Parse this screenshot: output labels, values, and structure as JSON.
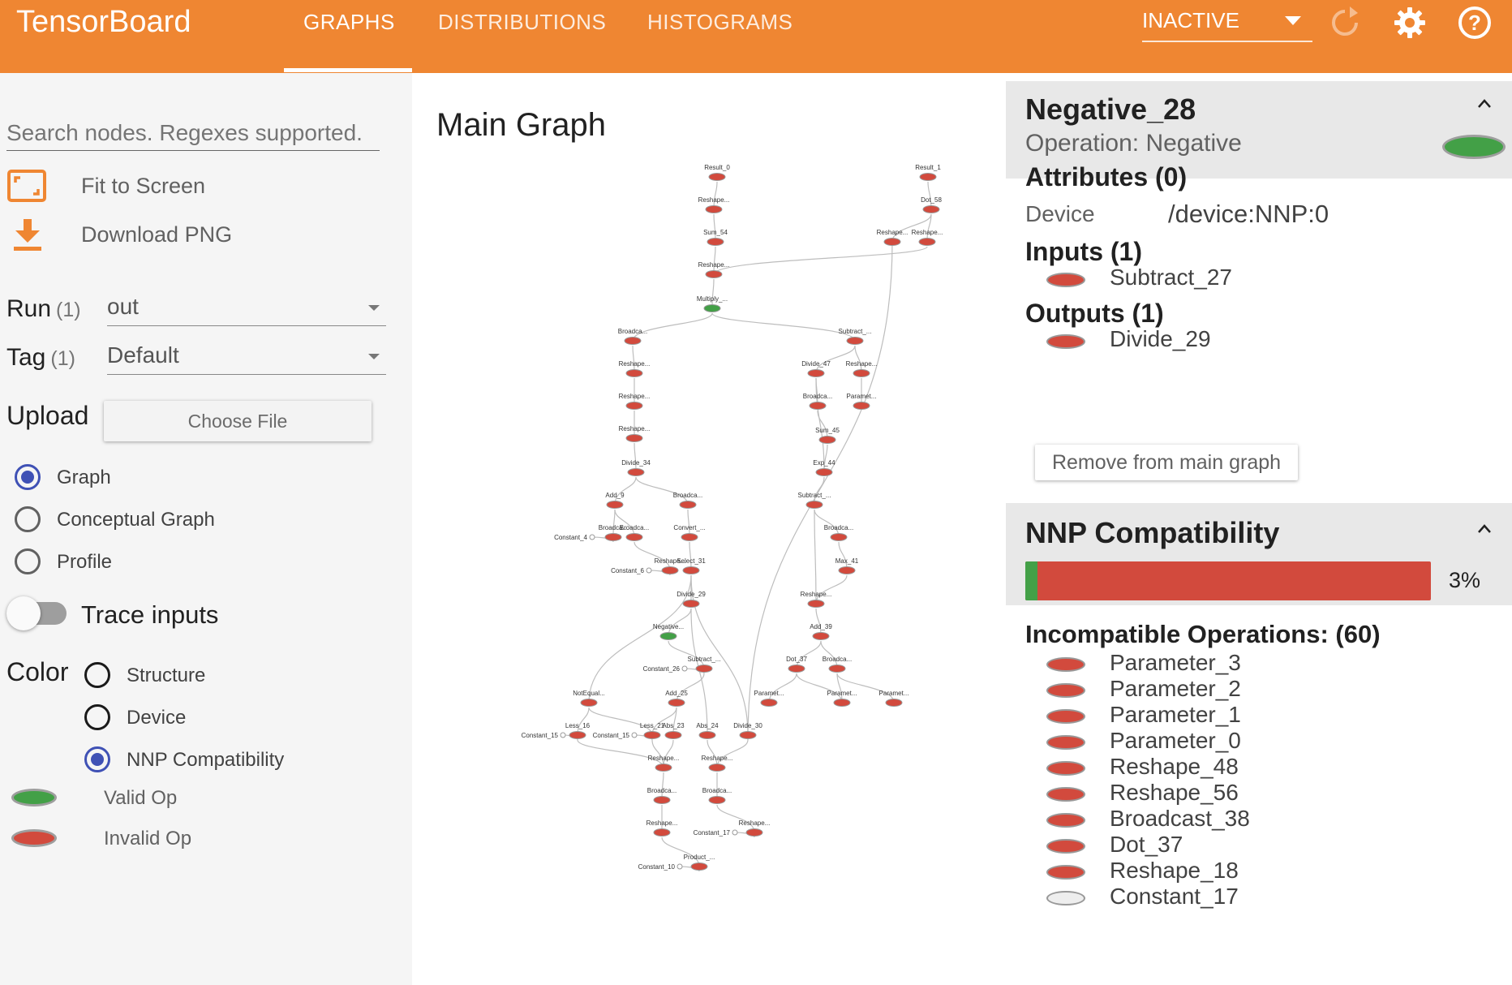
{
  "app": {
    "brand": "TensorBoard"
  },
  "tabs": [
    {
      "label": "GRAPHS",
      "active": true
    },
    {
      "label": "DISTRIBUTIONS",
      "active": false
    },
    {
      "label": "HISTOGRAMS",
      "active": false
    }
  ],
  "topbar": {
    "run_select": "INACTIVE",
    "icons": [
      "refresh-icon",
      "settings-icon",
      "help-icon"
    ]
  },
  "sidebar": {
    "search_placeholder": "Search nodes. Regexes supported.",
    "fit_label": "Fit to Screen",
    "download_label": "Download PNG",
    "run": {
      "label": "Run",
      "count": "(1)",
      "value": "out"
    },
    "tag": {
      "label": "Tag",
      "count": "(1)",
      "value": "Default"
    },
    "upload": {
      "label": "Upload",
      "button": "Choose File"
    },
    "graph_modes": [
      {
        "label": "Graph",
        "selected": true
      },
      {
        "label": "Conceptual Graph",
        "selected": false
      },
      {
        "label": "Profile",
        "selected": false
      }
    ],
    "trace_label": "Trace inputs",
    "trace_on": false,
    "color_label": "Color",
    "color_modes": [
      {
        "label": "Structure",
        "selected": false
      },
      {
        "label": "Device",
        "selected": false
      },
      {
        "label": "NNP Compatibility",
        "selected": true
      }
    ],
    "legend": [
      {
        "label": "Valid Op",
        "color": "#43a047"
      },
      {
        "label": "Invalid Op",
        "color": "#d24a3d"
      }
    ]
  },
  "graph": {
    "title": "Main Graph",
    "colors": {
      "invalid": "#d24a3d",
      "valid": "#43a047",
      "constant": "#ffffff",
      "edge": "#bdbdbd"
    },
    "nodes": [
      {
        "id": "n0",
        "label": "Result_0",
        "type": "invalid"
      },
      {
        "id": "n1",
        "label": "Reshape...",
        "type": "invalid"
      },
      {
        "id": "n2",
        "label": "Sum_54",
        "type": "invalid"
      },
      {
        "id": "n3",
        "label": "Reshape...",
        "type": "invalid"
      },
      {
        "id": "n4",
        "label": "Multiply_...",
        "type": "valid"
      },
      {
        "id": "n5",
        "label": "Result_1",
        "type": "invalid"
      },
      {
        "id": "n6",
        "label": "Dot_58",
        "type": "invalid"
      },
      {
        "id": "n7",
        "label": "Reshape...",
        "type": "invalid"
      },
      {
        "id": "n8",
        "label": "Reshape...",
        "type": "invalid"
      },
      {
        "id": "n9",
        "label": "Broadca...",
        "type": "invalid"
      },
      {
        "id": "n10",
        "label": "Reshape...",
        "type": "invalid"
      },
      {
        "id": "n11",
        "label": "Reshape...",
        "type": "invalid"
      },
      {
        "id": "n12",
        "label": "Reshape...",
        "type": "invalid"
      },
      {
        "id": "n13",
        "label": "Divide_34",
        "type": "invalid"
      },
      {
        "id": "n14",
        "label": "Add_9",
        "type": "invalid"
      },
      {
        "id": "n15",
        "label": "Broadca...",
        "type": "invalid"
      },
      {
        "id": "n16",
        "label": "Broadca...",
        "type": "invalid"
      },
      {
        "id": "n17",
        "label": "Broadca...",
        "type": "invalid"
      },
      {
        "id": "n18",
        "label": "Convert_...",
        "type": "invalid"
      },
      {
        "id": "n19",
        "label": "Reshape...",
        "type": "invalid"
      },
      {
        "id": "n20",
        "label": "Select_31",
        "type": "invalid"
      },
      {
        "id": "n21",
        "label": "Divide_29",
        "type": "invalid"
      },
      {
        "id": "n22",
        "label": "Negative...",
        "type": "valid"
      },
      {
        "id": "n23",
        "label": "Subtract_...",
        "type": "invalid"
      },
      {
        "id": "n24",
        "label": "Add_25",
        "type": "invalid"
      },
      {
        "id": "n25",
        "label": "NotEqual...",
        "type": "invalid"
      },
      {
        "id": "n26",
        "label": "Less_16",
        "type": "invalid"
      },
      {
        "id": "n27",
        "label": "Less_21",
        "type": "invalid"
      },
      {
        "id": "n28",
        "label": "Abs_23",
        "type": "invalid"
      },
      {
        "id": "n29",
        "label": "Abs_24",
        "type": "invalid"
      },
      {
        "id": "n30",
        "label": "Divide_30",
        "type": "invalid"
      },
      {
        "id": "n31",
        "label": "Reshape...",
        "type": "invalid"
      },
      {
        "id": "n32",
        "label": "Reshape...",
        "type": "invalid"
      },
      {
        "id": "n33",
        "label": "Broadca...",
        "type": "invalid"
      },
      {
        "id": "n34",
        "label": "Broadca...",
        "type": "invalid"
      },
      {
        "id": "n35",
        "label": "Reshape...",
        "type": "invalid"
      },
      {
        "id": "n36",
        "label": "Reshape...",
        "type": "invalid"
      },
      {
        "id": "n37",
        "label": "Product_...",
        "type": "invalid"
      },
      {
        "id": "n38",
        "label": "Subtract_...",
        "type": "invalid"
      },
      {
        "id": "n39",
        "label": "Divide_47",
        "type": "invalid"
      },
      {
        "id": "n40",
        "label": "Reshape...",
        "type": "invalid"
      },
      {
        "id": "n41",
        "label": "Broadca...",
        "type": "invalid"
      },
      {
        "id": "n42",
        "label": "Paramet...",
        "type": "invalid"
      },
      {
        "id": "n43",
        "label": "Sum_45",
        "type": "invalid"
      },
      {
        "id": "n44",
        "label": "Exp_44",
        "type": "invalid"
      },
      {
        "id": "n45",
        "label": "Subtract_...",
        "type": "invalid"
      },
      {
        "id": "n46",
        "label": "Broadca...",
        "type": "invalid"
      },
      {
        "id": "n47",
        "label": "Max_41",
        "type": "invalid"
      },
      {
        "id": "n48",
        "label": "Reshape...",
        "type": "invalid"
      },
      {
        "id": "n49",
        "label": "Add_39",
        "type": "invalid"
      },
      {
        "id": "n50",
        "label": "Dot_37",
        "type": "invalid"
      },
      {
        "id": "n51",
        "label": "Broadca...",
        "type": "invalid"
      },
      {
        "id": "n52",
        "label": "Paramet...",
        "type": "invalid"
      },
      {
        "id": "n53",
        "label": "Paramet...",
        "type": "invalid"
      },
      {
        "id": "n54",
        "label": "Paramet...",
        "type": "invalid"
      },
      {
        "id": "c0",
        "label": "Constant_4",
        "type": "constant"
      },
      {
        "id": "c1",
        "label": "Constant_6",
        "type": "constant"
      },
      {
        "id": "c2",
        "label": "Constant_26",
        "type": "constant"
      },
      {
        "id": "c3",
        "label": "Constant_15",
        "type": "constant"
      },
      {
        "id": "c4",
        "label": "Constant_15",
        "type": "constant"
      },
      {
        "id": "c5",
        "label": "Constant_17",
        "type": "constant"
      },
      {
        "id": "c6",
        "label": "Constant_10",
        "type": "constant"
      }
    ],
    "edges": [
      [
        "n1",
        "n0"
      ],
      [
        "n2",
        "n1"
      ],
      [
        "n3",
        "n2"
      ],
      [
        "n4",
        "n3"
      ],
      [
        "n6",
        "n5"
      ],
      [
        "n7",
        "n6"
      ],
      [
        "n8",
        "n6"
      ],
      [
        "n3",
        "n8"
      ],
      [
        "n9",
        "n4"
      ],
      [
        "n38",
        "n4"
      ],
      [
        "n10",
        "n9"
      ],
      [
        "n11",
        "n10"
      ],
      [
        "n12",
        "n11"
      ],
      [
        "n13",
        "n12"
      ],
      [
        "n14",
        "n13"
      ],
      [
        "n15",
        "n13"
      ],
      [
        "n16",
        "n14"
      ],
      [
        "n17",
        "n14"
      ],
      [
        "c0",
        "n16"
      ],
      [
        "n18",
        "n15"
      ],
      [
        "n19",
        "n17"
      ],
      [
        "c1",
        "n19"
      ],
      [
        "n20",
        "n18"
      ],
      [
        "n21",
        "n20"
      ],
      [
        "n22",
        "n21"
      ],
      [
        "n23",
        "n22"
      ],
      [
        "c2",
        "n23"
      ],
      [
        "n24",
        "n23"
      ],
      [
        "n27",
        "n24"
      ],
      [
        "n28",
        "n24"
      ],
      [
        "n25",
        "n20"
      ],
      [
        "n26",
        "n25"
      ],
      [
        "n27",
        "n25"
      ],
      [
        "c3",
        "n26"
      ],
      [
        "c4",
        "n27"
      ],
      [
        "n29",
        "n21"
      ],
      [
        "n30",
        "n20"
      ],
      [
        "n7",
        "n30"
      ],
      [
        "n31",
        "n26"
      ],
      [
        "n31",
        "n27"
      ],
      [
        "n32",
        "n29"
      ],
      [
        "n32",
        "n30"
      ],
      [
        "n31",
        "n28"
      ],
      [
        "n33",
        "n31"
      ],
      [
        "n34",
        "n32"
      ],
      [
        "n35",
        "n33"
      ],
      [
        "n36",
        "n34"
      ],
      [
        "c5",
        "n36"
      ],
      [
        "n37",
        "n35"
      ],
      [
        "c6",
        "n37"
      ],
      [
        "n39",
        "n38"
      ],
      [
        "n40",
        "n38"
      ],
      [
        "n42",
        "n40"
      ],
      [
        "n41",
        "n39"
      ],
      [
        "n43",
        "n41"
      ],
      [
        "n44",
        "n43"
      ],
      [
        "n44",
        "n39"
      ],
      [
        "n45",
        "n44"
      ],
      [
        "n46",
        "n45"
      ],
      [
        "n48",
        "n45"
      ],
      [
        "n47",
        "n46"
      ],
      [
        "n48",
        "n47"
      ],
      [
        "n49",
        "n48"
      ],
      [
        "n50",
        "n49"
      ],
      [
        "n51",
        "n49"
      ],
      [
        "n52",
        "n50"
      ],
      [
        "n53",
        "n50"
      ],
      [
        "n53",
        "n51"
      ],
      [
        "n54",
        "n51"
      ]
    ]
  },
  "info": {
    "node_name": "Negative_28",
    "operation_label": "Operation:",
    "operation": "Negative",
    "node_color": "#43a047",
    "attributes_title": "Attributes (0)",
    "device_key": "Device",
    "device_value": "/device:NNP:0",
    "inputs_title": "Inputs (1)",
    "inputs": [
      "Subtract_27"
    ],
    "outputs_title": "Outputs (1)",
    "outputs": [
      "Divide_29"
    ],
    "remove_button": "Remove from main graph",
    "compat_title": "NNP Compatibility",
    "compat_percent_label": "3%",
    "compat_fraction": 0.03,
    "incompatible_title": "Incompatible Operations: (60)",
    "incompatible": [
      {
        "label": "Parameter_3",
        "type": "invalid"
      },
      {
        "label": "Parameter_2",
        "type": "invalid"
      },
      {
        "label": "Parameter_1",
        "type": "invalid"
      },
      {
        "label": "Parameter_0",
        "type": "invalid"
      },
      {
        "label": "Reshape_48",
        "type": "invalid"
      },
      {
        "label": "Reshape_56",
        "type": "invalid"
      },
      {
        "label": "Broadcast_38",
        "type": "invalid"
      },
      {
        "label": "Dot_37",
        "type": "invalid"
      },
      {
        "label": "Reshape_18",
        "type": "invalid"
      },
      {
        "label": "Constant_17",
        "type": "constant"
      }
    ]
  }
}
